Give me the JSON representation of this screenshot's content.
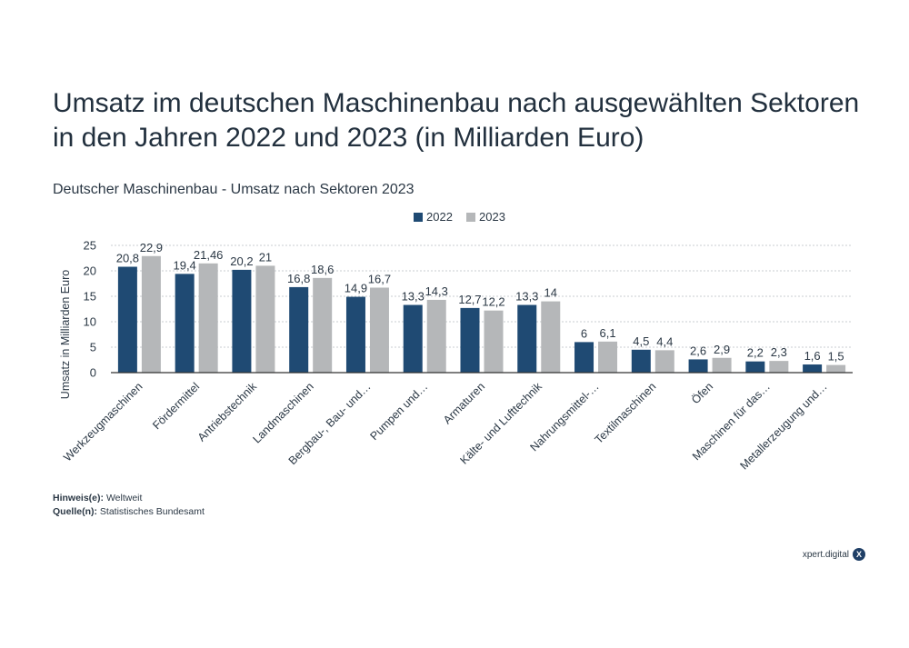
{
  "title": "Umsatz im deutschen Maschinenbau nach ausgewählten Sektoren in den Jahren 2022 und 2023 (in Milliarden Euro)",
  "subtitle": "Deutscher Maschinenbau - Umsatz nach Sektoren 2023",
  "notes": {
    "hint_label": "Hinweis(e):",
    "hint_value": "Weltweit",
    "source_label": "Quelle(n):",
    "source_value": "Statistisches Bundesamt"
  },
  "brand": {
    "name": "xpert.digital",
    "mark": "X"
  },
  "colors": {
    "series_2022": "#1f4a73",
    "series_2023": "#b5b7b9",
    "grid": "#c8ccd0",
    "axis": "#333333"
  },
  "chart_data": {
    "type": "bar",
    "categories": [
      "Werkzeugmaschinen",
      "Fördermittel",
      "Antriebstechnik",
      "Landmaschinen",
      "Bergbau-, Bau- und…",
      "Pumpen und…",
      "Armaturen",
      "Kälte- und Lufttechnik",
      "Nahrungsmittel-…",
      "Textilmaschinen",
      "Öfen",
      "Maschinen für das…",
      "Metallerzeugung und…"
    ],
    "series": [
      {
        "name": "2022",
        "values": [
          20.8,
          19.4,
          20.2,
          16.8,
          14.9,
          13.3,
          12.7,
          13.3,
          6,
          4.5,
          2.6,
          2.2,
          1.6
        ],
        "labels": [
          "20,8",
          "19,4",
          "20,2",
          "16,8",
          "14,9",
          "13,3",
          "12,7",
          "13,3",
          "6",
          "4,5",
          "2,6",
          "2,2",
          "1,6"
        ]
      },
      {
        "name": "2023",
        "values": [
          22.9,
          21.46,
          21,
          18.6,
          16.7,
          14.3,
          12.2,
          14,
          6.1,
          4.4,
          2.9,
          2.3,
          1.5
        ],
        "labels": [
          "22,9",
          "21,46",
          "21",
          "18,6",
          "16,7",
          "14,3",
          "12,2",
          "14",
          "6,1",
          "4,4",
          "2,9",
          "2,3",
          "1,5"
        ]
      }
    ],
    "xlabel": "",
    "ylabel": "Umsatz in Milliarden Euro",
    "ylim": [
      0,
      25
    ],
    "yticks": [
      0,
      5,
      10,
      15,
      20,
      25
    ],
    "grid": true,
    "legend_position": "top-center"
  }
}
